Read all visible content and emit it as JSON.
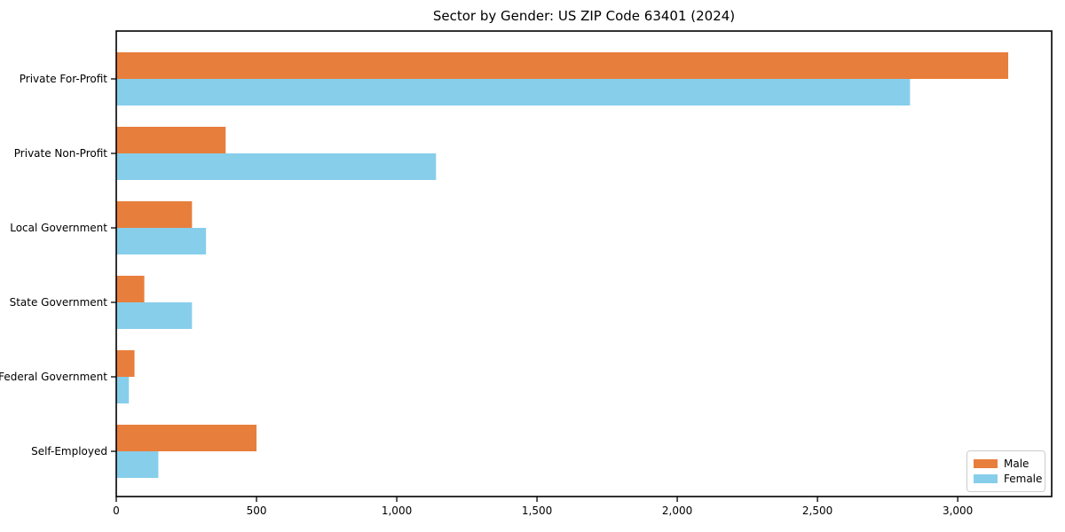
{
  "chart_data": {
    "type": "bar",
    "orientation": "horizontal",
    "title": "Sector by Gender: US ZIP Code 63401 (2024)",
    "categories": [
      "Private For-Profit",
      "Private Non-Profit",
      "Local Government",
      "State Government",
      "Federal Government",
      "Self-Employed"
    ],
    "series": [
      {
        "name": "Male",
        "color": "#E87E3C",
        "values": [
          3180,
          390,
          270,
          100,
          65,
          500
        ]
      },
      {
        "name": "Female",
        "color": "#87CEEB",
        "values": [
          2830,
          1140,
          320,
          270,
          45,
          150
        ]
      }
    ],
    "xlabel": "",
    "ylabel": "",
    "xlim": [
      0,
      3335
    ],
    "x_ticks": {
      "values": [
        0,
        500,
        1000,
        1500,
        2000,
        2500,
        3000
      ],
      "labels": [
        "0",
        "500",
        "1,000",
        "1,500",
        "2,000",
        "2,500",
        "3,000"
      ]
    },
    "grid": false,
    "legend": {
      "position": "lower right"
    },
    "axis_color": "#000000",
    "plot_background": "#ffffff"
  }
}
